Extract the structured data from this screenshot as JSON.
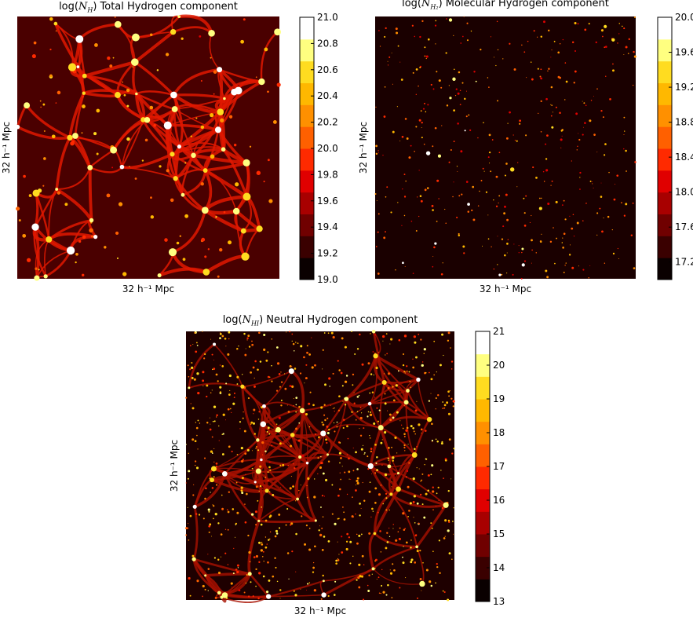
{
  "chart_data": [
    {
      "type": "heatmap",
      "title_prefix": "log(",
      "title_var": "N",
      "title_sub": "H",
      "title_suffix": ") Total Hydrogen component",
      "xlabel": "32 h⁻¹ Mpc",
      "ylabel": "32 h⁻¹ Mpc",
      "colorbar": {
        "range": [
          19.0,
          21.0
        ],
        "ticks": [
          "19.0",
          "19.2",
          "19.4",
          "19.6",
          "19.8",
          "20.0",
          "20.2",
          "20.4",
          "20.6",
          "20.8",
          "21.0"
        ],
        "tick_values": [
          19.0,
          19.2,
          19.4,
          19.6,
          19.8,
          20.0,
          20.2,
          20.4,
          20.6,
          20.8,
          21.0
        ]
      },
      "colormap": "hot"
    },
    {
      "type": "heatmap",
      "title_prefix": "log(",
      "title_var": "N",
      "title_sub": "H₂",
      "title_suffix": ") Molecular Hydrogen component",
      "xlabel": "32 h⁻¹ Mpc",
      "ylabel": "32 h⁻¹ Mpc",
      "colorbar": {
        "range": [
          17.0,
          20.0
        ],
        "ticks": [
          "17.2",
          "17.6",
          "18.0",
          "18.4",
          "18.8",
          "19.2",
          "19.6",
          "20.0"
        ],
        "tick_values": [
          17.2,
          17.6,
          18.0,
          18.4,
          18.8,
          19.2,
          19.6,
          20.0
        ]
      },
      "colormap": "hot"
    },
    {
      "type": "heatmap",
      "title_prefix": "log(",
      "title_var": "N",
      "title_sub": "HI",
      "title_suffix": ") Neutral Hydrogen component",
      "xlabel": "32 h⁻¹ Mpc",
      "ylabel": "32 h⁻¹ Mpc",
      "colorbar": {
        "range": [
          13,
          21
        ],
        "ticks": [
          "13",
          "14",
          "15",
          "16",
          "17",
          "18",
          "19",
          "20",
          "21"
        ],
        "tick_values": [
          13,
          14,
          15,
          16,
          17,
          18,
          19,
          20,
          21
        ]
      },
      "colormap": "hot"
    }
  ],
  "colors": {
    "hot_map": [
      "#0a0000",
      "#3a0000",
      "#700000",
      "#a80000",
      "#e00000",
      "#ff2a00",
      "#ff6000",
      "#ff9000",
      "#ffb800",
      "#ffdc20",
      "#ffff80",
      "#ffffff"
    ]
  }
}
